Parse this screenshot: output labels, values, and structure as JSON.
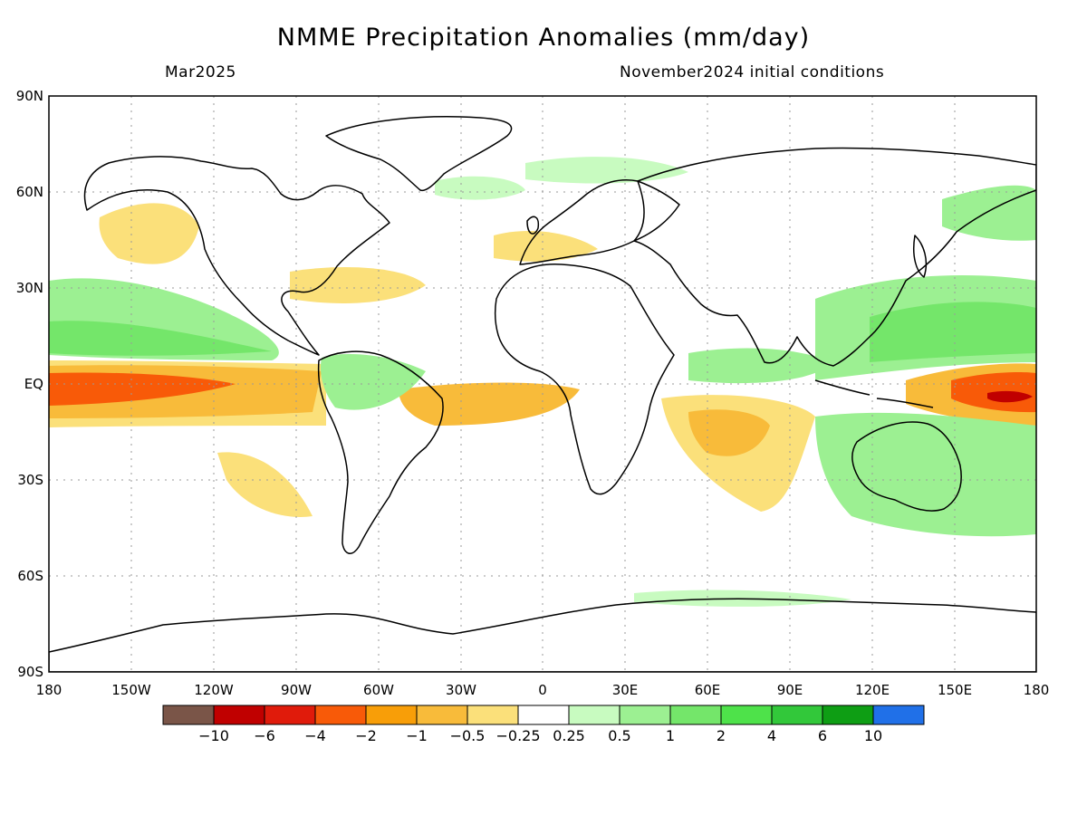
{
  "title": "NMME Precipitation Anomalies (mm/day)",
  "subtitle_left": "Mar2025",
  "subtitle_right": "November2024 initial conditions",
  "axes": {
    "lat_labels": [
      "90N",
      "60N",
      "30N",
      "EQ",
      "30S",
      "60S",
      "90S"
    ],
    "lon_labels": [
      "180",
      "150W",
      "120W",
      "90W",
      "60W",
      "30W",
      "0",
      "30E",
      "60E",
      "90E",
      "120E",
      "150E",
      "180"
    ],
    "lat_range": [
      -90,
      90
    ],
    "lon_range": [
      -180,
      180
    ],
    "grid": true
  },
  "colorbar": {
    "labels": [
      "-10",
      "-6",
      "-4",
      "-2",
      "-1",
      "-0.5",
      "-0.25",
      "0.25",
      "0.5",
      "1",
      "2",
      "4",
      "6",
      "10"
    ],
    "colors": [
      "#7a5548",
      "#c00000",
      "#e01b0b",
      "#f85a08",
      "#f89e08",
      "#f8bb3a",
      "#fbe07a",
      "#ffffff",
      "#c8fbc0",
      "#9cf092",
      "#74e66a",
      "#4ee24a",
      "#32c83a",
      "#0e9e14",
      "#2070e8"
    ]
  },
  "map_features": {
    "ocean_color": "#ffffff",
    "coastline_color": "#000000"
  }
}
